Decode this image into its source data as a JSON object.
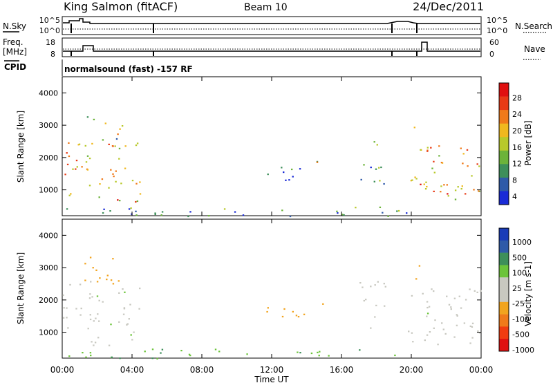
{
  "header": {
    "station": "King Salmon (fitACF)",
    "beam": "Beam 10",
    "date": "24/Dec/2011"
  },
  "noise_panel": {
    "left_label": "N.Sky",
    "right_label": "N.Search",
    "left_ticks": [
      "10^5",
      "10^0"
    ],
    "right_ticks": [
      "10^5",
      "10^0"
    ]
  },
  "freq_panel": {
    "left_label_line1": "Freq.",
    "left_label_line2": "[MHz]",
    "left_ticks": [
      "18",
      "8"
    ],
    "right_label": "Nave",
    "right_ticks": [
      "60",
      "0"
    ]
  },
  "cpid": {
    "label": "CPID",
    "text": "normalsound (fast) -157 RF"
  },
  "x_axis": {
    "label": "Time UT",
    "ticks": [
      "00:00",
      "04:00",
      "08:00",
      "12:00",
      "16:00",
      "20:00",
      "00:00"
    ]
  },
  "colors": {
    "power_scale": [
      "#1a2bd6",
      "#2f5aa8",
      "#3e8f5a",
      "#6cb33a",
      "#b8c92a",
      "#f0b81e",
      "#f07a1a",
      "#e83a16",
      "#e01010"
    ],
    "velocity_scale": [
      "#e01010",
      "#f03c10",
      "#f07a1a",
      "#f2a41e",
      "#c8c8c0",
      "#c8c8c0",
      "#6cc43a",
      "#3e8f5a",
      "#2f5aa8",
      "#1a3cb8"
    ]
  },
  "chart_data": [
    {
      "type": "heatmap",
      "title": "",
      "xlabel": "Time UT",
      "ylabel": "Slant Range [km]",
      "x_range_hours": [
        0,
        24
      ],
      "ylim": [
        200,
        4500
      ],
      "y_ticks": [
        "1000",
        "2000",
        "3000",
        "4000"
      ],
      "colorbar": {
        "label": "Power [dB]",
        "ticks": [
          "28",
          "24",
          "20",
          "16",
          "12",
          "8",
          "4"
        ]
      },
      "scatter_regions": [
        {
          "t_start": 0.0,
          "t_end": 4.5,
          "range_min": 600,
          "range_max": 2600,
          "power_db": 20
        },
        {
          "t_start": 1.2,
          "t_end": 3.5,
          "range_min": 2400,
          "range_max": 3400,
          "power_db": 14
        },
        {
          "t_start": 11.7,
          "t_end": 13.5,
          "range_min": 1300,
          "range_max": 1800,
          "power_db": 9
        },
        {
          "t_start": 13.2,
          "t_end": 15.0,
          "range_min": 1500,
          "range_max": 1900,
          "power_db": 11
        },
        {
          "t_start": 17.0,
          "t_end": 18.5,
          "range_min": 1100,
          "range_max": 2600,
          "power_db": 8
        },
        {
          "t_start": 19.8,
          "t_end": 24.0,
          "range_min": 600,
          "range_max": 2400,
          "power_db": 20
        },
        {
          "t_start": 20.0,
          "t_end": 20.6,
          "range_min": 2600,
          "range_max": 3200,
          "power_db": 16
        },
        {
          "t_start": 0.0,
          "t_end": 20.0,
          "range_min": 200,
          "range_max": 500,
          "power_db": 6
        }
      ]
    },
    {
      "type": "heatmap",
      "title": "",
      "xlabel": "Time UT",
      "ylabel": "Slant Range [km]",
      "x_range_hours": [
        0,
        24
      ],
      "ylim": [
        200,
        4500
      ],
      "y_ticks": [
        "1000",
        "2000",
        "3000",
        "4000"
      ],
      "colorbar": {
        "label": "Velocity [m s-1]",
        "ticks": [
          "1000",
          "500",
          "100",
          "25",
          "-25",
          "-100",
          "-500",
          "-1000"
        ]
      },
      "scatter_regions": [
        {
          "t_start": 0.0,
          "t_end": 4.5,
          "range_min": 600,
          "range_max": 2600,
          "velocity": 0
        },
        {
          "t_start": 1.2,
          "t_end": 3.5,
          "range_min": 2400,
          "range_max": 3400,
          "velocity": -150
        },
        {
          "t_start": 11.7,
          "t_end": 13.5,
          "range_min": 1300,
          "range_max": 1800,
          "velocity": -300
        },
        {
          "t_start": 13.2,
          "t_end": 15.0,
          "range_min": 1500,
          "range_max": 1900,
          "velocity": -200
        },
        {
          "t_start": 17.0,
          "t_end": 18.5,
          "range_min": 1100,
          "range_max": 2600,
          "velocity": 0
        },
        {
          "t_start": 19.8,
          "t_end": 24.0,
          "range_min": 600,
          "range_max": 2400,
          "velocity": 0
        },
        {
          "t_start": 20.0,
          "t_end": 20.6,
          "range_min": 2600,
          "range_max": 3200,
          "velocity": -400
        },
        {
          "t_start": 0.0,
          "t_end": 20.0,
          "range_min": 200,
          "range_max": 500,
          "velocity": 80
        }
      ]
    }
  ]
}
